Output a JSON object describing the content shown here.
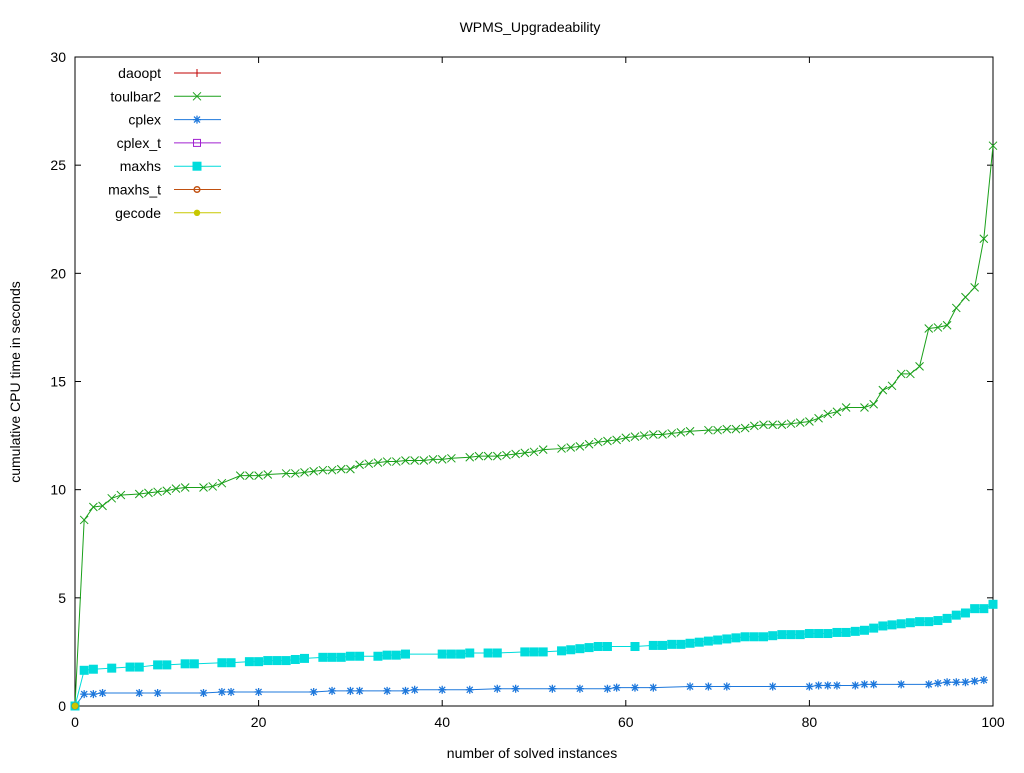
{
  "chart_data": {
    "type": "line",
    "title": "WPMS_Upgradeability",
    "xlabel": "number of solved instances",
    "ylabel": "cumulative CPU time in seconds",
    "xlim": [
      0,
      100
    ],
    "ylim": [
      0,
      30
    ],
    "xticks": [
      0,
      20,
      40,
      60,
      80,
      100
    ],
    "yticks": [
      0,
      5,
      10,
      15,
      20,
      25,
      30
    ],
    "grid": false,
    "legend_position": "top-left",
    "series": [
      {
        "name": "daoopt",
        "color": "#c00000",
        "marker": "plus",
        "points": [
          [
            0,
            0
          ]
        ]
      },
      {
        "name": "toulbar2",
        "color": "#1aa01a",
        "marker": "x",
        "points": [
          [
            0,
            0
          ],
          [
            1,
            8.6
          ],
          [
            2,
            9.2
          ],
          [
            3,
            9.25
          ],
          [
            4,
            9.6
          ],
          [
            5,
            9.75
          ],
          [
            7,
            9.8
          ],
          [
            8,
            9.85
          ],
          [
            9,
            9.9
          ],
          [
            10,
            9.95
          ],
          [
            11,
            10.05
          ],
          [
            12,
            10.1
          ],
          [
            14,
            10.1
          ],
          [
            15,
            10.15
          ],
          [
            16,
            10.3
          ],
          [
            18,
            10.65
          ],
          [
            19,
            10.65
          ],
          [
            20,
            10.65
          ],
          [
            21,
            10.7
          ],
          [
            23,
            10.75
          ],
          [
            24,
            10.75
          ],
          [
            25,
            10.8
          ],
          [
            26,
            10.85
          ],
          [
            27,
            10.9
          ],
          [
            28,
            10.9
          ],
          [
            29,
            10.95
          ],
          [
            30,
            10.95
          ],
          [
            31,
            11.15
          ],
          [
            32,
            11.2
          ],
          [
            33,
            11.25
          ],
          [
            34,
            11.3
          ],
          [
            35,
            11.3
          ],
          [
            36,
            11.35
          ],
          [
            37,
            11.35
          ],
          [
            38,
            11.35
          ],
          [
            39,
            11.4
          ],
          [
            40,
            11.4
          ],
          [
            41,
            11.45
          ],
          [
            43,
            11.5
          ],
          [
            44,
            11.55
          ],
          [
            45,
            11.55
          ],
          [
            46,
            11.55
          ],
          [
            47,
            11.6
          ],
          [
            48,
            11.65
          ],
          [
            49,
            11.7
          ],
          [
            50,
            11.75
          ],
          [
            51,
            11.85
          ],
          [
            53,
            11.9
          ],
          [
            54,
            11.95
          ],
          [
            55,
            12.0
          ],
          [
            56,
            12.1
          ],
          [
            57,
            12.2
          ],
          [
            58,
            12.25
          ],
          [
            59,
            12.3
          ],
          [
            60,
            12.4
          ],
          [
            61,
            12.45
          ],
          [
            62,
            12.5
          ],
          [
            63,
            12.55
          ],
          [
            64,
            12.55
          ],
          [
            65,
            12.6
          ],
          [
            66,
            12.65
          ],
          [
            67,
            12.7
          ],
          [
            69,
            12.75
          ],
          [
            70,
            12.75
          ],
          [
            71,
            12.8
          ],
          [
            72,
            12.8
          ],
          [
            73,
            12.85
          ],
          [
            74,
            12.95
          ],
          [
            75,
            13.0
          ],
          [
            76,
            13.0
          ],
          [
            77,
            13.0
          ],
          [
            78,
            13.05
          ],
          [
            79,
            13.1
          ],
          [
            80,
            13.15
          ],
          [
            81,
            13.3
          ],
          [
            82,
            13.5
          ],
          [
            83,
            13.6
          ],
          [
            84,
            13.8
          ],
          [
            86,
            13.8
          ],
          [
            87,
            13.95
          ],
          [
            88,
            14.6
          ],
          [
            89,
            14.8
          ],
          [
            90,
            15.35
          ],
          [
            91,
            15.35
          ],
          [
            92,
            15.7
          ],
          [
            93,
            17.45
          ],
          [
            94,
            17.5
          ],
          [
            95,
            17.6
          ],
          [
            96,
            18.4
          ],
          [
            97,
            18.9
          ],
          [
            98,
            19.35
          ],
          [
            99,
            21.6
          ],
          [
            100,
            25.9
          ]
        ]
      },
      {
        "name": "cplex",
        "color": "#1e78dc",
        "marker": "star",
        "points": [
          [
            0,
            0
          ],
          [
            1,
            0.55
          ],
          [
            2,
            0.55
          ],
          [
            3,
            0.6
          ],
          [
            7,
            0.6
          ],
          [
            9,
            0.6
          ],
          [
            14,
            0.6
          ],
          [
            16,
            0.65
          ],
          [
            17,
            0.65
          ],
          [
            20,
            0.65
          ],
          [
            26,
            0.65
          ],
          [
            28,
            0.7
          ],
          [
            30,
            0.7
          ],
          [
            31,
            0.7
          ],
          [
            34,
            0.7
          ],
          [
            36,
            0.7
          ],
          [
            37,
            0.75
          ],
          [
            40,
            0.75
          ],
          [
            43,
            0.75
          ],
          [
            46,
            0.8
          ],
          [
            48,
            0.8
          ],
          [
            52,
            0.8
          ],
          [
            55,
            0.8
          ],
          [
            58,
            0.8
          ],
          [
            59,
            0.85
          ],
          [
            61,
            0.85
          ],
          [
            63,
            0.85
          ],
          [
            67,
            0.9
          ],
          [
            69,
            0.9
          ],
          [
            71,
            0.9
          ],
          [
            76,
            0.9
          ],
          [
            80,
            0.9
          ],
          [
            81,
            0.95
          ],
          [
            82,
            0.95
          ],
          [
            83,
            0.95
          ],
          [
            85,
            0.95
          ],
          [
            86,
            1.0
          ],
          [
            87,
            1.0
          ],
          [
            90,
            1.0
          ],
          [
            93,
            1.0
          ],
          [
            94,
            1.05
          ],
          [
            95,
            1.1
          ],
          [
            96,
            1.1
          ],
          [
            97,
            1.1
          ],
          [
            98,
            1.15
          ],
          [
            99,
            1.2
          ]
        ]
      },
      {
        "name": "cplex_t",
        "color": "#a020d0",
        "marker": "open-square",
        "points": [
          [
            0,
            0
          ]
        ]
      },
      {
        "name": "maxhs",
        "color": "#00dcdc",
        "marker": "filled-square",
        "points": [
          [
            0,
            0
          ],
          [
            1,
            1.65
          ],
          [
            2,
            1.7
          ],
          [
            4,
            1.75
          ],
          [
            6,
            1.8
          ],
          [
            7,
            1.8
          ],
          [
            9,
            1.9
          ],
          [
            10,
            1.9
          ],
          [
            12,
            1.95
          ],
          [
            13,
            1.95
          ],
          [
            16,
            2.0
          ],
          [
            17,
            2.0
          ],
          [
            19,
            2.05
          ],
          [
            20,
            2.05
          ],
          [
            21,
            2.1
          ],
          [
            22,
            2.1
          ],
          [
            23,
            2.1
          ],
          [
            24,
            2.15
          ],
          [
            25,
            2.2
          ],
          [
            27,
            2.25
          ],
          [
            28,
            2.25
          ],
          [
            29,
            2.25
          ],
          [
            30,
            2.3
          ],
          [
            31,
            2.3
          ],
          [
            33,
            2.3
          ],
          [
            34,
            2.35
          ],
          [
            35,
            2.35
          ],
          [
            36,
            2.4
          ],
          [
            40,
            2.4
          ],
          [
            41,
            2.4
          ],
          [
            42,
            2.4
          ],
          [
            43,
            2.45
          ],
          [
            45,
            2.45
          ],
          [
            46,
            2.45
          ],
          [
            49,
            2.5
          ],
          [
            50,
            2.5
          ],
          [
            51,
            2.5
          ],
          [
            53,
            2.55
          ],
          [
            54,
            2.6
          ],
          [
            55,
            2.65
          ],
          [
            56,
            2.7
          ],
          [
            57,
            2.75
          ],
          [
            58,
            2.75
          ],
          [
            61,
            2.75
          ],
          [
            63,
            2.8
          ],
          [
            64,
            2.8
          ],
          [
            65,
            2.85
          ],
          [
            66,
            2.85
          ],
          [
            67,
            2.9
          ],
          [
            68,
            2.95
          ],
          [
            69,
            3.0
          ],
          [
            70,
            3.05
          ],
          [
            71,
            3.1
          ],
          [
            72,
            3.15
          ],
          [
            73,
            3.2
          ],
          [
            74,
            3.2
          ],
          [
            75,
            3.2
          ],
          [
            76,
            3.25
          ],
          [
            77,
            3.3
          ],
          [
            78,
            3.3
          ],
          [
            79,
            3.3
          ],
          [
            80,
            3.35
          ],
          [
            81,
            3.35
          ],
          [
            82,
            3.35
          ],
          [
            83,
            3.4
          ],
          [
            84,
            3.4
          ],
          [
            85,
            3.45
          ],
          [
            86,
            3.5
          ],
          [
            87,
            3.6
          ],
          [
            88,
            3.7
          ],
          [
            89,
            3.75
          ],
          [
            90,
            3.8
          ],
          [
            91,
            3.85
          ],
          [
            92,
            3.9
          ],
          [
            93,
            3.9
          ],
          [
            94,
            3.95
          ],
          [
            95,
            4.05
          ],
          [
            96,
            4.2
          ],
          [
            97,
            4.3
          ],
          [
            98,
            4.5
          ],
          [
            99,
            4.5
          ],
          [
            100,
            4.7
          ]
        ]
      },
      {
        "name": "maxhs_t",
        "color": "#c05010",
        "marker": "open-circle",
        "points": [
          [
            0,
            0
          ]
        ]
      },
      {
        "name": "gecode",
        "color": "#c8c800",
        "marker": "filled-circle",
        "points": [
          [
            0,
            0
          ]
        ]
      }
    ]
  }
}
